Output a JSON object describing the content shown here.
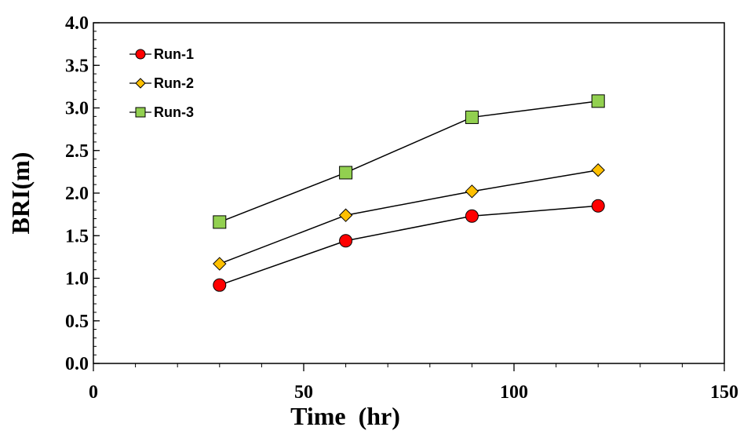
{
  "chart_data": {
    "type": "line",
    "title": "",
    "xlabel": "Time  (hr)",
    "ylabel": "BRI(m)",
    "xlim": [
      0,
      150
    ],
    "ylim": [
      0.0,
      4.0
    ],
    "x_ticks": [
      0,
      50,
      100,
      150
    ],
    "x_tick_labels": [
      "0",
      "50",
      "100",
      "150"
    ],
    "x_minor_step": 10,
    "y_ticks": [
      0.0,
      0.5,
      1.0,
      1.5,
      2.0,
      2.5,
      3.0,
      3.5,
      4.0
    ],
    "y_tick_labels": [
      "0.0",
      "0.5",
      "1.0",
      "1.5",
      "2.0",
      "2.5",
      "3.0",
      "3.5",
      "4.0"
    ],
    "y_minor_step": 0.1,
    "grid": false,
    "legend_position": "top-left",
    "series": [
      {
        "name": "Run-1",
        "marker": "circle",
        "color": "#ff0000",
        "x": [
          30,
          60,
          90,
          120
        ],
        "y": [
          0.92,
          1.44,
          1.73,
          1.85
        ]
      },
      {
        "name": "Run-2",
        "marker": "diamond",
        "color": "#ffc000",
        "x": [
          30,
          60,
          90,
          120
        ],
        "y": [
          1.17,
          1.74,
          2.02,
          2.27
        ]
      },
      {
        "name": "Run-3",
        "marker": "square",
        "color": "#92d050",
        "x": [
          30,
          60,
          90,
          120
        ],
        "y": [
          1.66,
          2.24,
          2.89,
          3.08
        ]
      }
    ]
  }
}
